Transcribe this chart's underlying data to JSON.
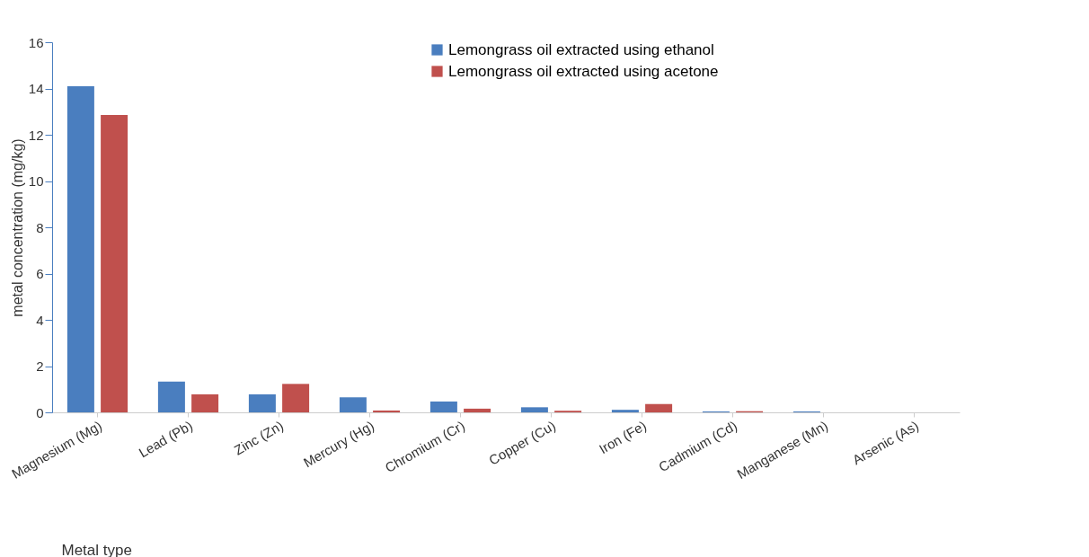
{
  "chart_data": {
    "type": "bar",
    "xlabel": "Metal type",
    "ylabel": "metal concentration (mg/kg)",
    "categories": [
      "Magnesium (Mg)",
      "Lead (Pb)",
      "Zinc (Zn)",
      "Mercury (Hg)",
      "Chromium (Cr)",
      "Copper (Cu)",
      "Iron (Fe)",
      "Cadmium (Cd)",
      "Manganese (Mn)",
      "Arsenic (As)"
    ],
    "series": [
      {
        "name": "Lemongrass oil extracted using ethanol",
        "color": "#4a7ebf",
        "values": [
          14.1,
          1.33,
          0.78,
          0.65,
          0.47,
          0.22,
          0.11,
          0.04,
          0.04,
          0
        ]
      },
      {
        "name": "Lemongrass oil extracted using acetone",
        "color": "#c0504d",
        "values": [
          12.85,
          0.78,
          1.23,
          0.08,
          0.16,
          0.07,
          0.36,
          0.05,
          0,
          0
        ]
      }
    ],
    "ylim": [
      0,
      16
    ],
    "yticks": [
      0,
      2,
      4,
      6,
      8,
      10,
      12,
      14,
      16
    ],
    "grid": false,
    "legend": "top right"
  }
}
